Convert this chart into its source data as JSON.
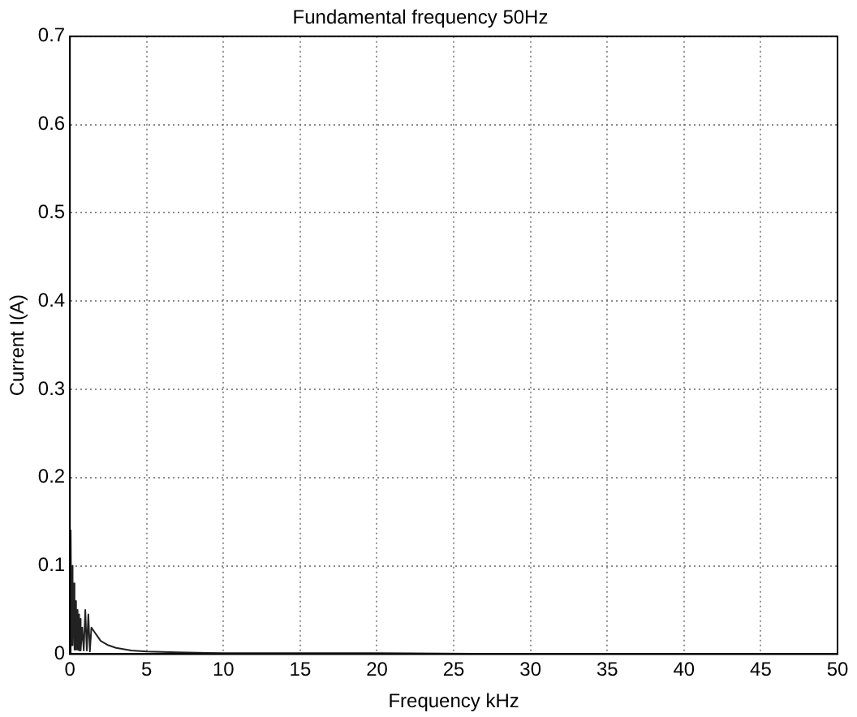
{
  "chart_data": {
    "type": "line",
    "title": "Fundamental frequency 50Hz",
    "xlabel": "Frequency kHz",
    "ylabel": "Current I(A)",
    "x": [
      0,
      0.05,
      0.1,
      0.15,
      0.2,
      0.25,
      0.3,
      0.35,
      0.4,
      0.45,
      0.5,
      0.55,
      0.6,
      0.65,
      0.7,
      0.8,
      0.9,
      1.0,
      1.1,
      1.2,
      1.3,
      1.4,
      1.6,
      1.8,
      2.0,
      2.5,
      3,
      4,
      5,
      7,
      10,
      15,
      20,
      30,
      40,
      50
    ],
    "series": [
      {
        "color": "#222222",
        "values": [
          0,
          0.14,
          0.01,
          0.1,
          0.01,
          0.08,
          0.005,
          0.06,
          0.005,
          0.05,
          0.005,
          0.045,
          0.004,
          0.04,
          0.004,
          0.03,
          0.004,
          0.05,
          0.004,
          0.045,
          0.003,
          0.03,
          0.025,
          0.02,
          0.015,
          0.01,
          0.007,
          0.004,
          0.003,
          0.002,
          0.001,
          0.001,
          0.001,
          0,
          0,
          0
        ]
      }
    ],
    "xlim": [
      0,
      50
    ],
    "xticks": [
      0,
      5,
      10,
      15,
      20,
      25,
      30,
      35,
      40,
      45,
      50
    ],
    "ylim": [
      0,
      0.7
    ],
    "yticks": [
      0,
      0.1,
      0.2,
      0.3,
      0.4,
      0.5,
      0.6,
      0.7
    ],
    "grid": true,
    "marker": "none",
    "line_style": "solid"
  }
}
